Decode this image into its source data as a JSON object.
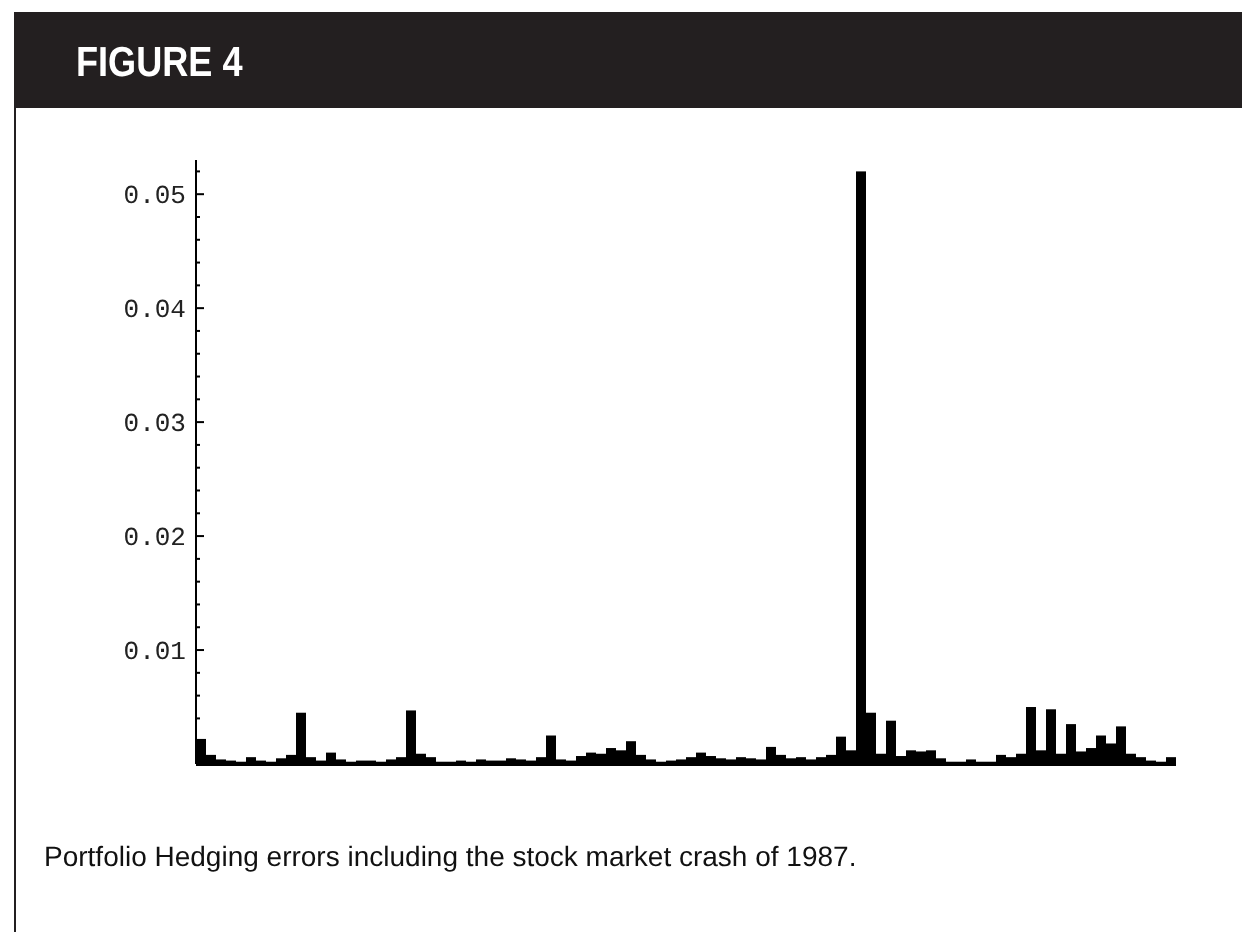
{
  "chart_data": {
    "type": "bar",
    "title": "FIGURE 4",
    "annotations": [
      "Portfolio Hedging errors including the stock market crash of 1987."
    ],
    "categories": [
      null,
      null,
      null,
      null,
      null,
      null,
      null,
      null,
      null,
      null,
      null,
      null,
      null,
      null,
      null,
      null,
      null,
      null,
      null,
      null,
      null,
      null,
      null,
      null,
      null,
      null,
      null,
      null,
      null,
      null,
      null,
      null,
      null,
      null,
      null,
      null,
      null,
      null,
      null,
      null,
      null,
      null,
      null,
      null,
      null,
      null,
      null,
      null,
      null,
      null,
      null,
      null,
      null,
      null,
      null,
      null,
      null,
      null,
      null,
      null,
      null,
      null,
      null,
      null,
      null,
      null,
      null,
      null,
      null,
      null,
      null,
      null,
      null,
      null,
      null,
      null,
      null,
      null,
      null,
      null,
      null,
      null,
      null,
      null,
      null,
      null,
      null,
      null,
      null,
      null,
      null,
      null,
      null,
      null,
      null,
      null,
      null,
      null
    ],
    "values": [
      0.0022,
      0.0008,
      0.0004,
      0.0003,
      0.0002,
      0.0006,
      0.0003,
      0.0002,
      0.0005,
      0.0008,
      0.0045,
      0.0006,
      0.0003,
      0.001,
      0.0004,
      0.0002,
      0.0003,
      0.0003,
      0.0002,
      0.0004,
      0.0006,
      0.0047,
      0.0009,
      0.0006,
      0.0002,
      0.0002,
      0.0003,
      0.0002,
      0.0004,
      0.0003,
      0.0003,
      0.0005,
      0.0004,
      0.0003,
      0.0006,
      0.0025,
      0.0004,
      0.0003,
      0.0007,
      0.001,
      0.0009,
      0.0014,
      0.0012,
      0.002,
      0.0008,
      0.0004,
      0.0002,
      0.0003,
      0.0004,
      0.0006,
      0.001,
      0.0007,
      0.0005,
      0.0004,
      0.0006,
      0.0005,
      0.0004,
      0.0015,
      0.0008,
      0.0005,
      0.0006,
      0.0004,
      0.0006,
      0.0008,
      0.0024,
      0.0012,
      0.052,
      0.0045,
      0.0009,
      0.0038,
      0.0007,
      0.0012,
      0.0011,
      0.0012,
      0.0005,
      0.0002,
      0.0002,
      0.0004,
      0.0002,
      0.0002,
      0.0008,
      0.0006,
      0.0009,
      0.005,
      0.0012,
      0.0048,
      0.0009,
      0.0035,
      0.0011,
      0.0014,
      0.0025,
      0.0018,
      0.0033,
      0.0009,
      0.0006,
      0.0003,
      0.0002,
      0.0006
    ],
    "color": "#000000",
    "ylim": [
      0,
      0.053
    ],
    "yticks": [
      {
        "value": 0.002,
        "label": null
      },
      {
        "value": 0.004,
        "label": null
      },
      {
        "value": 0.006,
        "label": null
      },
      {
        "value": 0.008,
        "label": null
      },
      {
        "value": 0.01,
        "label": "0.01"
      },
      {
        "value": 0.012,
        "label": null
      },
      {
        "value": 0.014,
        "label": null
      },
      {
        "value": 0.016,
        "label": null
      },
      {
        "value": 0.018,
        "label": null
      },
      {
        "value": 0.02,
        "label": "0.02"
      },
      {
        "value": 0.022,
        "label": null
      },
      {
        "value": 0.024,
        "label": null
      },
      {
        "value": 0.026,
        "label": null
      },
      {
        "value": 0.028,
        "label": null
      },
      {
        "value": 0.03,
        "label": "0.03"
      },
      {
        "value": 0.032,
        "label": null
      },
      {
        "value": 0.034,
        "label": null
      },
      {
        "value": 0.036,
        "label": null
      },
      {
        "value": 0.038,
        "label": null
      },
      {
        "value": 0.04,
        "label": "0.04"
      },
      {
        "value": 0.042,
        "label": null
      },
      {
        "value": 0.044,
        "label": null
      },
      {
        "value": 0.046,
        "label": null
      },
      {
        "value": 0.048,
        "label": null
      },
      {
        "value": 0.05,
        "label": "0.05"
      },
      {
        "value": 0.052,
        "label": null
      }
    ],
    "tick_labels": "y",
    "grid": false
  }
}
